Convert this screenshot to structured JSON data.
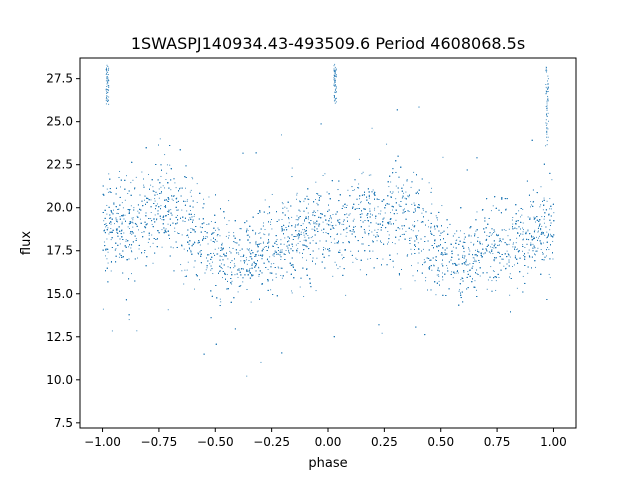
{
  "chart_data": {
    "type": "scatter",
    "title": "1SWASPJ140934.43-493509.6 Period 4608068.5s",
    "xlabel": "phase",
    "ylabel": "flux",
    "xlim": [
      -1.1,
      1.1
    ],
    "ylim": [
      7.2,
      28.7
    ],
    "x_ticks": [
      -1.0,
      -0.75,
      -0.5,
      -0.25,
      0.0,
      0.25,
      0.5,
      0.75,
      1.0
    ],
    "x_tick_labels": [
      "−1.00",
      "−0.75",
      "−0.50",
      "−0.25",
      "0.00",
      "0.25",
      "0.50",
      "0.75",
      "1.00"
    ],
    "y_ticks": [
      7.5,
      10.0,
      12.5,
      15.0,
      17.5,
      20.0,
      22.5,
      25.0,
      27.5
    ],
    "y_tick_labels": [
      "7.5",
      "10.0",
      "12.5",
      "15.0",
      "17.5",
      "20.0",
      "22.5",
      "25.0",
      "27.5"
    ],
    "grid": false,
    "marker_color": "#1f77b4",
    "series": [
      {
        "x_range": [
          -1.0,
          1.0
        ],
        "trend": {
          "phase": [
            -1.0,
            -0.9,
            -0.8,
            -0.7,
            -0.6,
            -0.5,
            -0.4,
            -0.3,
            -0.2,
            -0.1,
            0.0,
            0.1,
            0.2,
            0.3,
            0.4,
            0.5,
            0.6,
            0.7,
            0.8,
            0.9,
            1.0
          ],
          "median_flux": [
            19.0,
            19.0,
            19.5,
            20.0,
            19.0,
            17.5,
            17.0,
            17.5,
            18.0,
            18.5,
            19.0,
            19.0,
            19.5,
            20.0,
            19.0,
            17.5,
            17.0,
            17.5,
            18.0,
            18.5,
            19.0
          ],
          "spread": [
            1.8,
            1.8,
            2.0,
            2.3,
            2.0,
            1.8,
            1.6,
            1.7,
            1.9,
            1.9,
            1.8,
            1.8,
            2.0,
            2.3,
            2.0,
            1.8,
            1.6,
            1.7,
            1.9,
            1.9,
            1.8
          ]
        },
        "spikes": [
          {
            "x": -0.98,
            "y_range": [
              26.0,
              28.4
            ]
          },
          {
            "x": 0.03,
            "y_range": [
              26.0,
              28.4
            ]
          },
          {
            "x": 0.97,
            "y_range": [
              23.5,
              28.3
            ]
          }
        ],
        "flux_min": 8.2,
        "flux_max": 28.4
      }
    ]
  }
}
